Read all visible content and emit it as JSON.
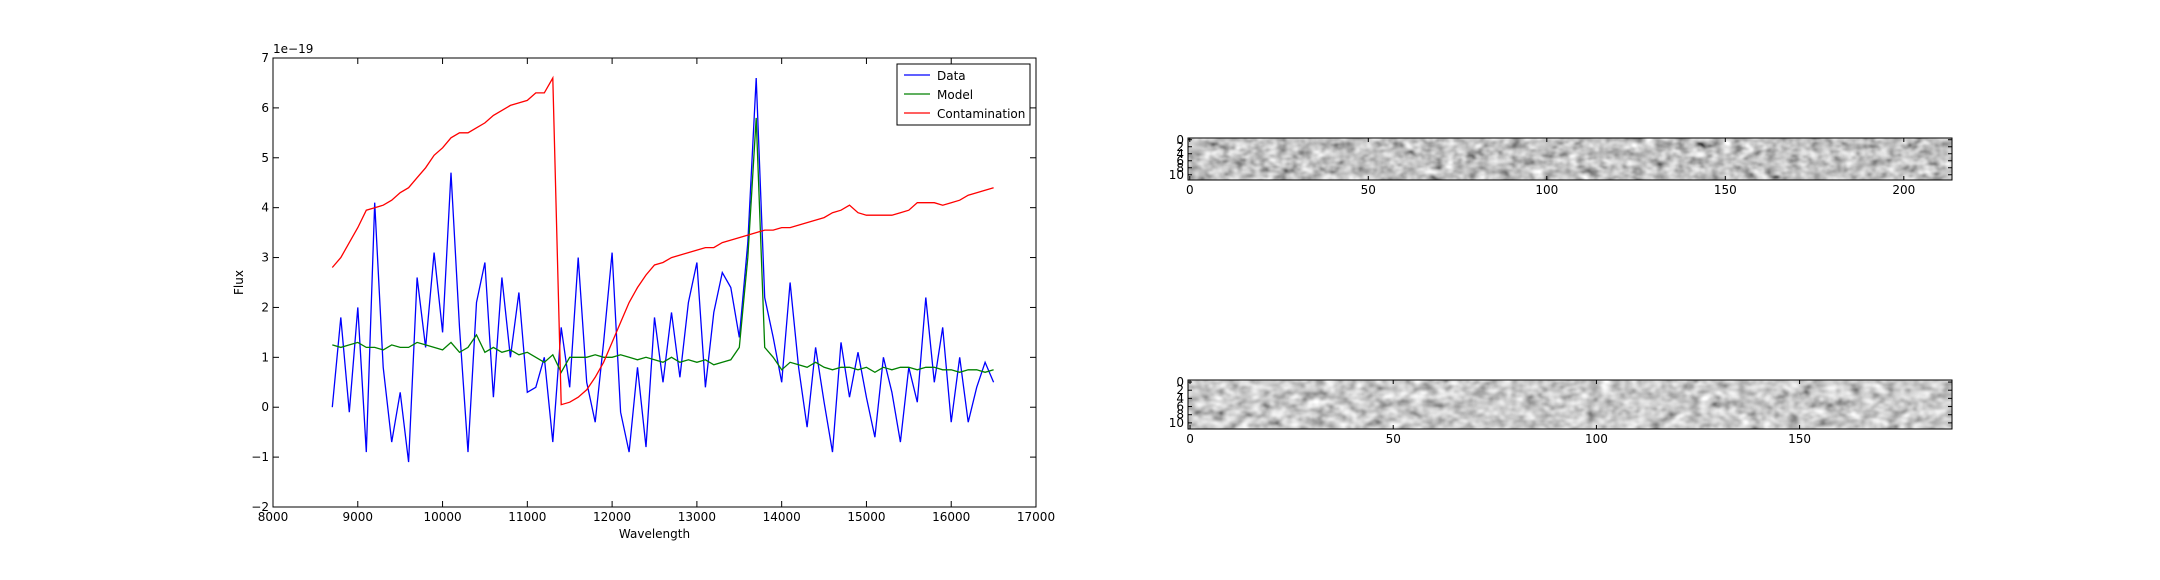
{
  "chart_data": [
    {
      "type": "line",
      "xlabel": "Wavelength",
      "ylabel": "Flux",
      "yaxis_offset": "1e−19",
      "xlim": [
        8000,
        17000
      ],
      "ylim": [
        -2,
        7
      ],
      "xticks": [
        8000,
        9000,
        10000,
        11000,
        12000,
        13000,
        14000,
        15000,
        16000,
        17000
      ],
      "yticks": [
        {
          "value": -2,
          "label": "−2"
        },
        {
          "value": -1,
          "label": "−1"
        },
        0,
        1,
        2,
        3,
        4,
        5,
        6,
        7
      ],
      "legend": "upper right",
      "x": [
        8700,
        8800,
        8900,
        9000,
        9100,
        9200,
        9300,
        9400,
        9500,
        9600,
        9700,
        9800,
        9900,
        10000,
        10100,
        10200,
        10300,
        10400,
        10500,
        10600,
        10700,
        10800,
        10900,
        11000,
        11100,
        11200,
        11300,
        11400,
        11500,
        11600,
        11700,
        11800,
        11900,
        12000,
        12100,
        12200,
        12300,
        12400,
        12500,
        12600,
        12700,
        12800,
        12900,
        13000,
        13100,
        13200,
        13300,
        13400,
        13500,
        13600,
        13700,
        13800,
        13900,
        14000,
        14100,
        14200,
        14300,
        14400,
        14500,
        14600,
        14700,
        14800,
        14900,
        15000,
        15100,
        15200,
        15300,
        15400,
        15500,
        15600,
        15700,
        15800,
        15900,
        16000,
        16100,
        16200,
        16300,
        16400,
        16500
      ],
      "series": [
        {
          "name": "Data",
          "color": "#0000ff",
          "values": [
            0.0,
            1.8,
            -0.1,
            2.0,
            -0.9,
            4.1,
            0.8,
            -0.7,
            0.3,
            -1.1,
            2.6,
            1.2,
            3.1,
            1.5,
            4.7,
            1.6,
            -0.9,
            2.1,
            2.9,
            0.2,
            2.6,
            1.0,
            2.3,
            0.3,
            0.4,
            1.0,
            -0.7,
            1.6,
            0.4,
            3.0,
            0.5,
            -0.3,
            1.3,
            3.1,
            -0.1,
            -0.9,
            0.8,
            -0.8,
            1.8,
            0.5,
            1.9,
            0.6,
            2.1,
            2.9,
            0.4,
            1.9,
            2.7,
            2.4,
            1.4,
            3.3,
            6.6,
            2.2,
            1.4,
            0.5,
            2.5,
            0.8,
            -0.4,
            1.2,
            0.1,
            -0.9,
            1.3,
            0.2,
            1.1,
            0.2,
            -0.6,
            1.0,
            0.3,
            -0.7,
            0.8,
            0.1,
            2.2,
            0.5,
            1.6,
            -0.3,
            1.0,
            -0.3,
            0.4,
            0.9,
            0.5
          ]
        },
        {
          "name": "Model",
          "color": "#008000",
          "values": [
            1.25,
            1.2,
            1.25,
            1.3,
            1.2,
            1.2,
            1.15,
            1.25,
            1.2,
            1.2,
            1.3,
            1.25,
            1.2,
            1.15,
            1.3,
            1.1,
            1.2,
            1.45,
            1.1,
            1.2,
            1.1,
            1.15,
            1.05,
            1.1,
            1.0,
            0.9,
            1.05,
            0.7,
            1.0,
            1.0,
            1.0,
            1.05,
            1.0,
            1.0,
            1.05,
            1.0,
            0.95,
            1.0,
            0.95,
            0.9,
            1.0,
            0.9,
            0.95,
            0.9,
            0.95,
            0.85,
            0.9,
            0.95,
            1.2,
            3.0,
            5.8,
            1.2,
            1.0,
            0.75,
            0.9,
            0.85,
            0.8,
            0.9,
            0.8,
            0.75,
            0.8,
            0.8,
            0.75,
            0.8,
            0.7,
            0.8,
            0.75,
            0.8,
            0.8,
            0.75,
            0.8,
            0.8,
            0.75,
            0.75,
            0.7,
            0.75,
            0.75,
            0.7,
            0.75
          ]
        },
        {
          "name": "Contamination",
          "color": "#ff0000",
          "values": [
            2.8,
            3.0,
            3.3,
            3.6,
            3.95,
            4.0,
            4.05,
            4.15,
            4.3,
            4.4,
            4.6,
            4.8,
            5.05,
            5.2,
            5.4,
            5.5,
            5.5,
            5.6,
            5.7,
            5.85,
            5.95,
            6.05,
            6.1,
            6.15,
            6.3,
            6.3,
            6.6,
            0.05,
            0.1,
            0.2,
            0.35,
            0.6,
            0.9,
            1.3,
            1.7,
            2.1,
            2.4,
            2.65,
            2.85,
            2.9,
            3.0,
            3.05,
            3.1,
            3.15,
            3.2,
            3.2,
            3.3,
            3.35,
            3.4,
            3.45,
            3.5,
            3.55,
            3.55,
            3.6,
            3.6,
            3.65,
            3.7,
            3.75,
            3.8,
            3.9,
            3.95,
            4.05,
            3.9,
            3.85,
            3.85,
            3.85,
            3.85,
            3.9,
            3.95,
            4.1,
            4.1,
            4.1,
            4.05,
            4.1,
            4.15,
            4.25,
            4.3,
            4.35,
            4.4
          ]
        }
      ]
    },
    {
      "type": "image",
      "xlim": [
        -0.5,
        213.5
      ],
      "ylim": [
        11.5,
        -0.5
      ],
      "xticks": [
        0,
        50,
        100,
        150,
        200
      ],
      "yticks": [
        0,
        2,
        4,
        6,
        8,
        10
      ]
    },
    {
      "type": "image",
      "xlim": [
        -0.5,
        187.5
      ],
      "ylim": [
        11.5,
        -0.5
      ],
      "xticks": [
        0,
        50,
        100,
        150
      ],
      "yticks": [
        0,
        2,
        4,
        6,
        8,
        10
      ]
    }
  ]
}
